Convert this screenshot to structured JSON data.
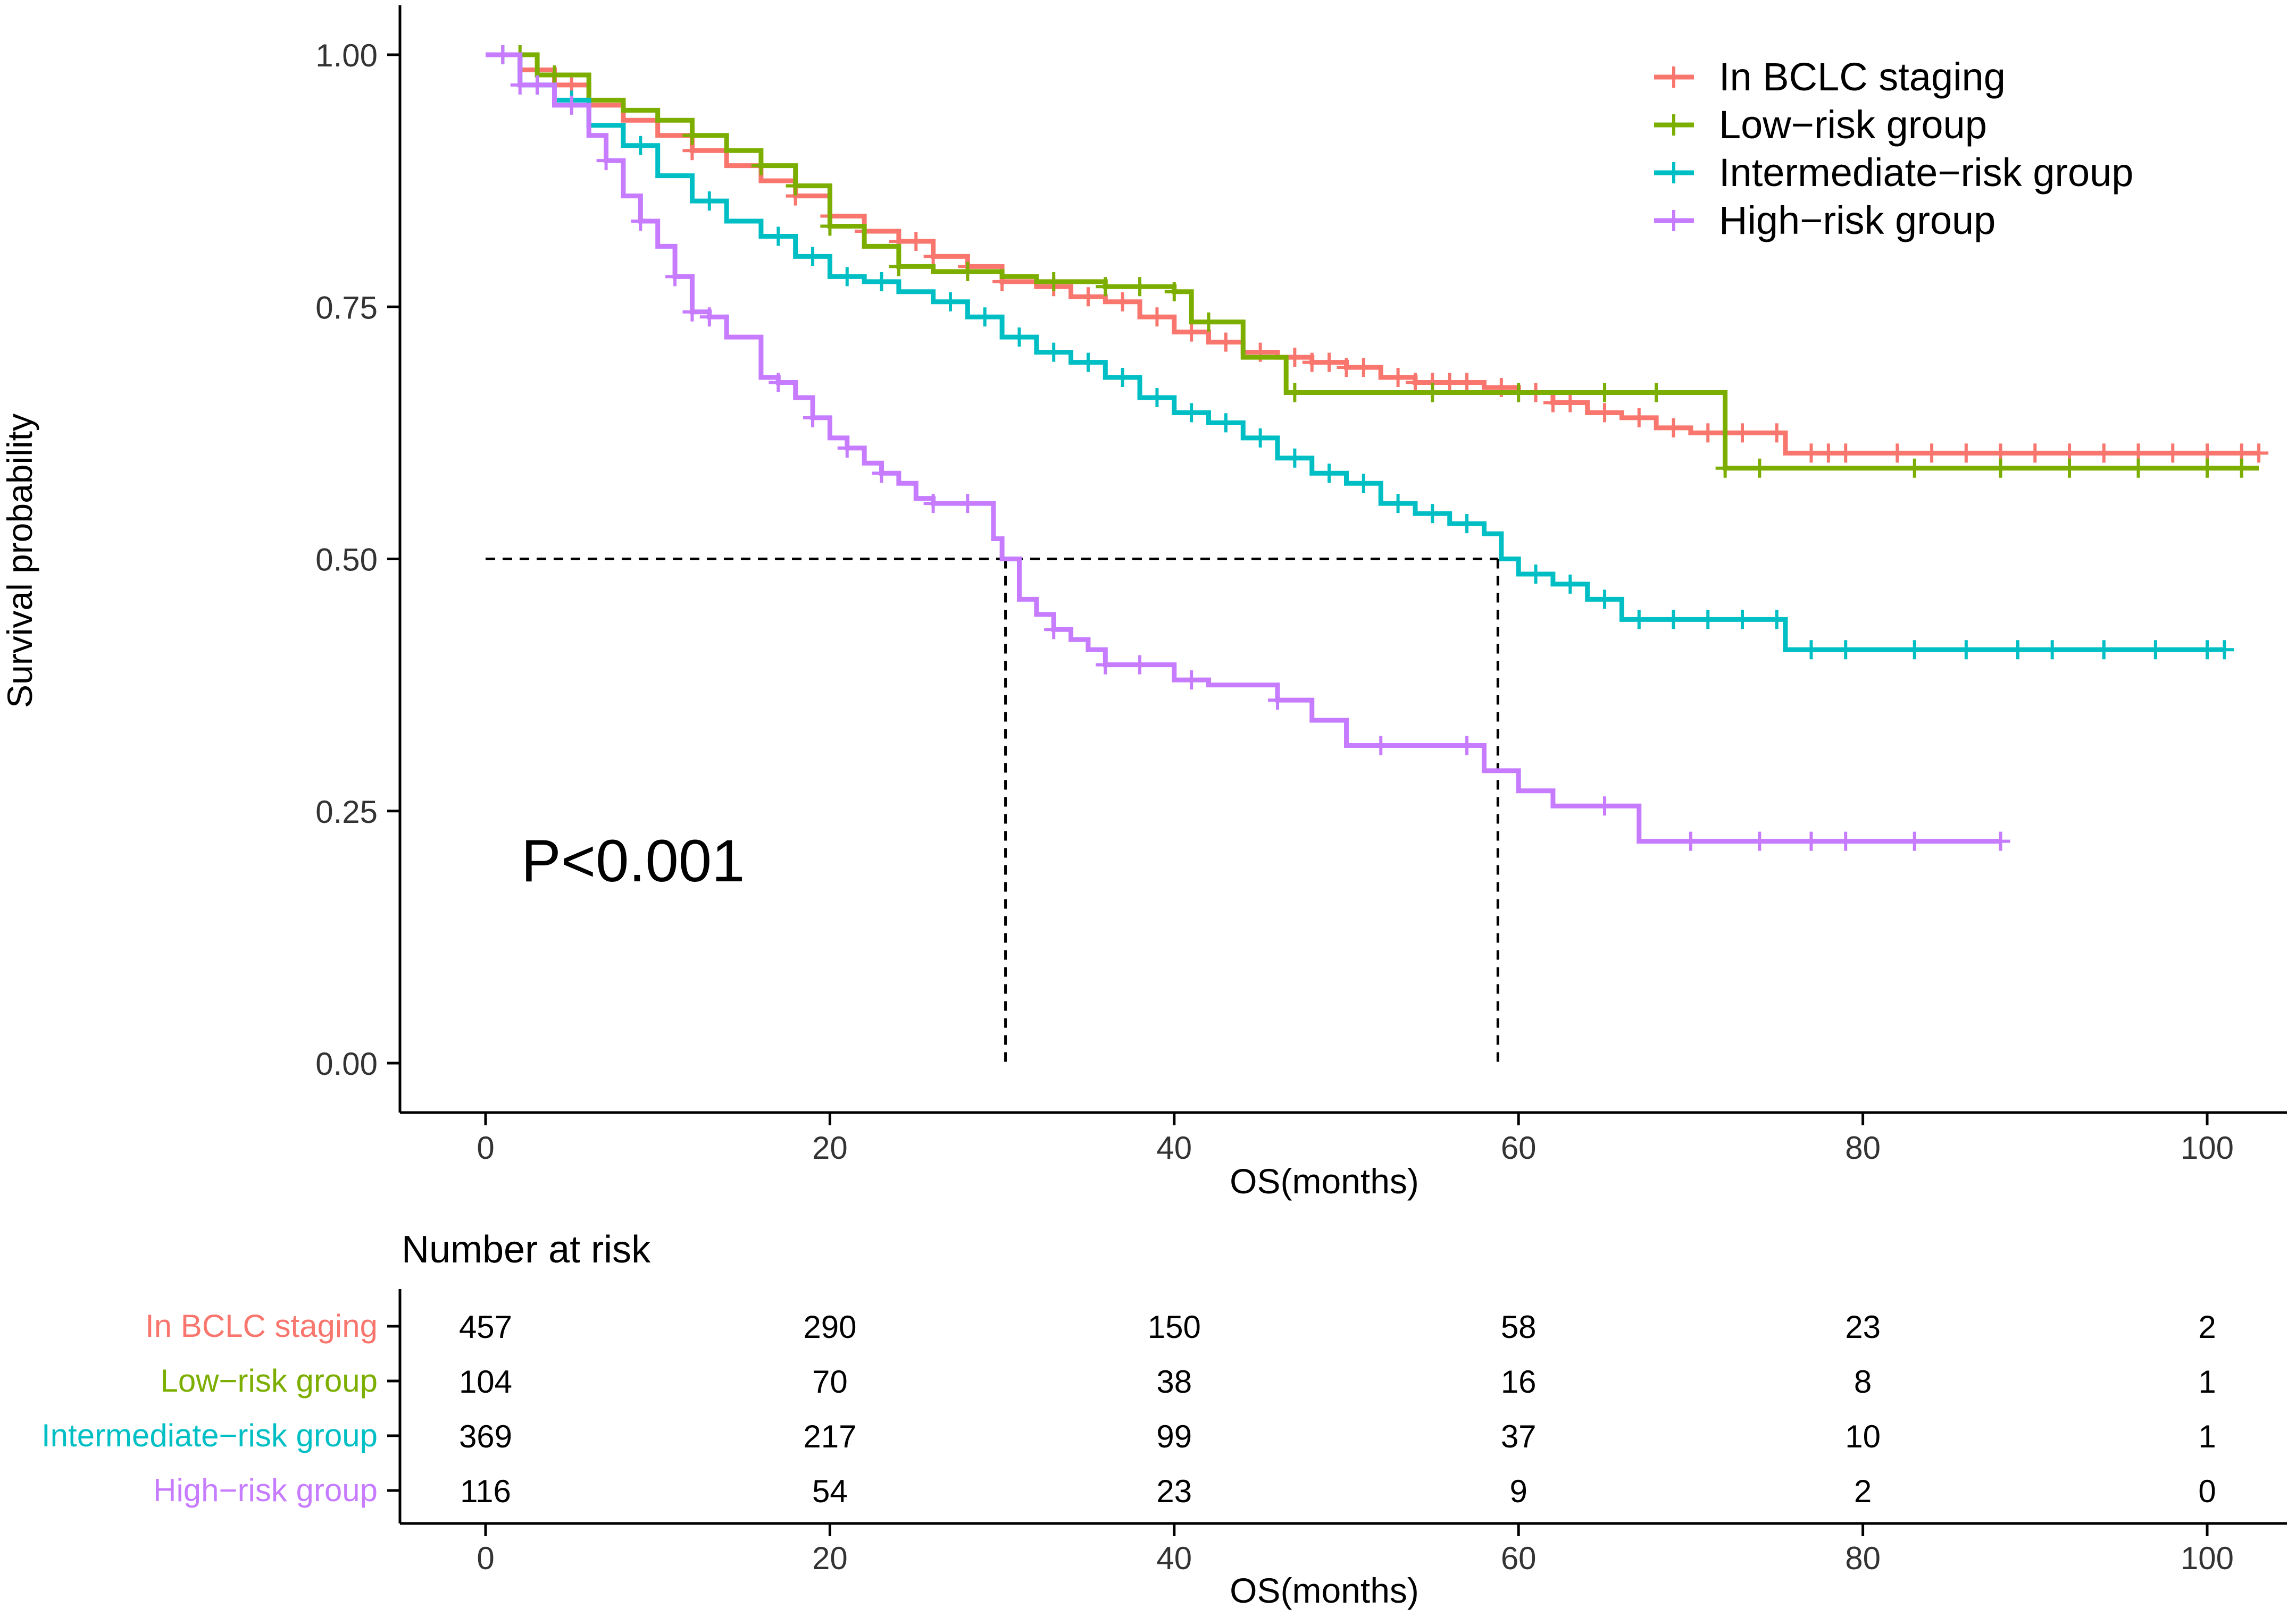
{
  "chart_data": {
    "type": "line",
    "subtype": "kaplan-meier",
    "ylabel": "Survival probability",
    "xlabel": "OS(months)",
    "ylim": [
      0,
      1
    ],
    "xlim": [
      0,
      103
    ],
    "y_ticks": [
      "0.00",
      "0.25",
      "0.50",
      "0.75",
      "1.00"
    ],
    "y_tick_values": [
      0,
      0.25,
      0.5,
      0.75,
      1.0
    ],
    "x_ticks": [
      "0",
      "20",
      "40",
      "60",
      "80",
      "100"
    ],
    "x_tick_values": [
      0,
      20,
      40,
      60,
      80,
      100
    ],
    "annotation": "P<0.001",
    "legend_position": "top-right",
    "median_lines": [
      {
        "series": "High−risk group",
        "x": 30.2,
        "y": 0.5
      },
      {
        "series": "Intermediate−risk group",
        "x": 58.8,
        "y": 0.5
      }
    ],
    "series": [
      {
        "name": "In BCLC staging",
        "color": "#F8766D",
        "x": [
          0,
          2,
          4,
          6,
          8,
          10,
          12,
          14,
          16,
          18,
          20,
          22,
          24,
          26,
          28,
          30,
          32,
          34,
          36,
          38,
          40,
          42,
          44,
          46,
          48,
          50,
          52,
          54,
          56,
          58,
          60,
          62,
          64,
          66,
          68,
          70,
          72,
          75,
          75.5,
          80,
          90,
          100,
          103
        ],
        "y": [
          1.0,
          0.985,
          0.97,
          0.95,
          0.935,
          0.92,
          0.905,
          0.89,
          0.875,
          0.86,
          0.84,
          0.825,
          0.815,
          0.8,
          0.79,
          0.775,
          0.77,
          0.76,
          0.755,
          0.74,
          0.725,
          0.715,
          0.705,
          0.7,
          0.695,
          0.69,
          0.68,
          0.675,
          0.675,
          0.67,
          0.665,
          0.655,
          0.645,
          0.64,
          0.63,
          0.625,
          0.625,
          0.625,
          0.605,
          0.605,
          0.605,
          0.605,
          0.605
        ],
        "censor_x": [
          1,
          3,
          5,
          12,
          18,
          20,
          22,
          24,
          25,
          26,
          28,
          30,
          33,
          35,
          37,
          39,
          41,
          43,
          45,
          47,
          48,
          49,
          50,
          51,
          53,
          54,
          55,
          56,
          57,
          59,
          61,
          62,
          63,
          65,
          67,
          69,
          71,
          73,
          75,
          77,
          78,
          79,
          82,
          84,
          86,
          88,
          90,
          92,
          94,
          96,
          98,
          100,
          102,
          103
        ]
      },
      {
        "name": "Low−risk group",
        "color": "#7CAE00",
        "x": [
          0,
          3,
          6,
          8,
          10,
          12,
          14,
          16,
          18,
          20,
          22,
          24,
          26,
          30,
          32,
          36,
          40,
          41,
          44,
          46.5,
          58,
          72,
          75,
          85,
          95,
          103
        ],
        "y": [
          1.0,
          0.98,
          0.955,
          0.945,
          0.935,
          0.92,
          0.905,
          0.89,
          0.87,
          0.83,
          0.81,
          0.79,
          0.785,
          0.78,
          0.775,
          0.77,
          0.765,
          0.735,
          0.7,
          0.665,
          0.665,
          0.59,
          0.59,
          0.59,
          0.59,
          0.59
        ],
        "censor_x": [
          2,
          4,
          12,
          16,
          18,
          20,
          24,
          28,
          33,
          36,
          38,
          40,
          42,
          47,
          55,
          60,
          65,
          68,
          72,
          74,
          83,
          88,
          92,
          96,
          100,
          102
        ]
      },
      {
        "name": "Intermediate−risk group",
        "color": "#00BFC4",
        "x": [
          0,
          2,
          4,
          6,
          8,
          10,
          12,
          14,
          16,
          18,
          20,
          22,
          24,
          26,
          28,
          30,
          32,
          34,
          36,
          38,
          40,
          42,
          44,
          46,
          48,
          50,
          52,
          54,
          56,
          58,
          59,
          60,
          62,
          64,
          66,
          68,
          70,
          72,
          74,
          75.5,
          80,
          90,
          101
        ],
        "y": [
          1.0,
          0.97,
          0.955,
          0.93,
          0.91,
          0.88,
          0.855,
          0.835,
          0.82,
          0.8,
          0.78,
          0.775,
          0.765,
          0.755,
          0.74,
          0.72,
          0.705,
          0.695,
          0.68,
          0.66,
          0.645,
          0.635,
          0.62,
          0.6,
          0.585,
          0.575,
          0.555,
          0.545,
          0.535,
          0.525,
          0.5,
          0.485,
          0.475,
          0.46,
          0.44,
          0.44,
          0.44,
          0.44,
          0.44,
          0.41,
          0.41,
          0.41,
          0.41
        ],
        "censor_x": [
          1,
          3,
          5,
          9,
          13,
          17,
          19,
          21,
          23,
          27,
          29,
          31,
          33,
          35,
          37,
          39,
          41,
          43,
          45,
          47,
          49,
          51,
          53,
          55,
          57,
          61,
          63,
          65,
          67,
          69,
          71,
          73,
          75,
          77,
          79,
          83,
          86,
          89,
          91,
          94,
          97,
          100,
          101
        ]
      },
      {
        "name": "High−risk group",
        "color": "#C77CFF",
        "x": [
          0,
          2,
          4,
          6,
          7,
          8,
          9,
          10,
          11,
          12,
          13,
          14,
          16,
          17,
          18,
          19,
          20,
          21,
          22,
          23,
          24,
          25,
          26,
          27,
          28,
          29,
          29.5,
          30,
          31,
          32,
          33,
          34,
          35,
          36,
          40,
          42,
          46,
          48,
          50,
          54,
          58,
          60,
          62,
          64,
          66,
          67,
          75,
          88
        ],
        "y": [
          1.0,
          0.97,
          0.95,
          0.92,
          0.895,
          0.86,
          0.835,
          0.81,
          0.78,
          0.745,
          0.74,
          0.72,
          0.68,
          0.675,
          0.66,
          0.64,
          0.62,
          0.61,
          0.595,
          0.585,
          0.575,
          0.56,
          0.555,
          0.555,
          0.555,
          0.555,
          0.52,
          0.5,
          0.46,
          0.445,
          0.43,
          0.42,
          0.41,
          0.395,
          0.38,
          0.375,
          0.36,
          0.34,
          0.315,
          0.315,
          0.29,
          0.27,
          0.255,
          0.255,
          0.255,
          0.22,
          0.22,
          0.22
        ],
        "censor_x": [
          1,
          2,
          3,
          5,
          7,
          9,
          11,
          12,
          13,
          17,
          19,
          21,
          23,
          26,
          28,
          33,
          36,
          38,
          41,
          46,
          52,
          57,
          65,
          70,
          74,
          77,
          79,
          83,
          88
        ]
      }
    ]
  },
  "risk_table": {
    "title": "Number at risk",
    "xlabel": "OS(months)",
    "x_ticks": [
      "0",
      "20",
      "40",
      "60",
      "80",
      "100"
    ],
    "rows": [
      {
        "label": "In BCLC staging",
        "color": "#F8766D",
        "values": [
          "457",
          "290",
          "150",
          "58",
          "23",
          "2"
        ]
      },
      {
        "label": "Low−risk group",
        "color": "#7CAE00",
        "values": [
          "104",
          "70",
          "38",
          "16",
          "8",
          "1"
        ]
      },
      {
        "label": "Intermediate−risk group",
        "color": "#00BFC4",
        "values": [
          "369",
          "217",
          "99",
          "37",
          "10",
          "1"
        ]
      },
      {
        "label": "High−risk group",
        "color": "#C77CFF",
        "values": [
          "116",
          "54",
          "23",
          "9",
          "2",
          "0"
        ]
      }
    ]
  }
}
